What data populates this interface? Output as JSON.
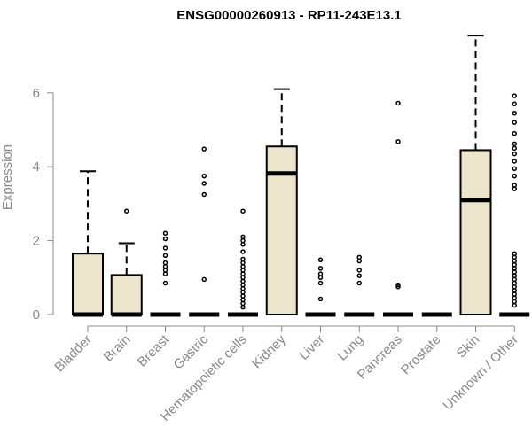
{
  "chart_data": {
    "type": "boxplot",
    "title": "ENSG00000260913 - RP11-243E13.1",
    "ylabel": "Expression",
    "ylim": [
      0,
      7.6
    ],
    "yticks": [
      0,
      2,
      4,
      6
    ],
    "categories": [
      "Bladder",
      "Brain",
      "Breast",
      "Gastric",
      "Hematopoietic cells",
      "Kidney",
      "Liver",
      "Lung",
      "Pancreas",
      "Prostate",
      "Skin",
      "Unknown / Other"
    ],
    "boxes": [
      {
        "q1": 0,
        "median": 0,
        "q3": 1.65,
        "whisker_low": 0,
        "whisker_high": 3.88,
        "outliers": []
      },
      {
        "q1": 0,
        "median": 0,
        "q3": 1.07,
        "whisker_low": 0,
        "whisker_high": 1.93,
        "outliers": [
          2.8
        ]
      },
      {
        "q1": 0,
        "median": 0,
        "q3": 0,
        "whisker_low": 0,
        "whisker_high": 0,
        "outliers": [
          2.2,
          2.05,
          1.8,
          1.6,
          1.4,
          1.3,
          1.2,
          1.1,
          0.85
        ]
      },
      {
        "q1": 0,
        "median": 0,
        "q3": 0,
        "whisker_low": 0,
        "whisker_high": 0,
        "outliers": [
          4.48,
          3.75,
          3.55,
          3.25,
          0.95
        ]
      },
      {
        "q1": 0,
        "median": 0,
        "q3": 0,
        "whisker_low": 0,
        "whisker_high": 0,
        "outliers": [
          2.8,
          2.1,
          2.0,
          1.9,
          1.7,
          1.5,
          1.4,
          1.3,
          1.2,
          1.1,
          1.0,
          0.9,
          0.8,
          0.7,
          0.6,
          0.5,
          0.4,
          0.3,
          0.2
        ]
      },
      {
        "q1": 0,
        "median": 3.82,
        "q3": 4.55,
        "whisker_low": 0,
        "whisker_high": 6.1,
        "outliers": []
      },
      {
        "q1": 0,
        "median": 0,
        "q3": 0,
        "whisker_low": 0,
        "whisker_high": 0,
        "outliers": [
          1.48,
          1.25,
          1.1,
          1.0,
          0.85,
          0.42
        ]
      },
      {
        "q1": 0,
        "median": 0,
        "q3": 0,
        "whisker_low": 0,
        "whisker_high": 0,
        "outliers": [
          1.55,
          1.45,
          1.2,
          1.05,
          0.85
        ]
      },
      {
        "q1": 0,
        "median": 0,
        "q3": 0,
        "whisker_low": 0,
        "whisker_high": 0,
        "outliers": [
          5.72,
          4.68,
          0.8,
          0.75
        ]
      },
      {
        "q1": 0,
        "median": 0,
        "q3": 0,
        "whisker_low": 0,
        "whisker_high": 0,
        "outliers": []
      },
      {
        "q1": 0,
        "median": 3.1,
        "q3": 4.45,
        "whisker_low": 0,
        "whisker_high": 7.55,
        "outliers": []
      },
      {
        "q1": 0,
        "median": 0,
        "q3": 0,
        "whisker_low": 0,
        "whisker_high": 0,
        "outliers": [
          5.92,
          5.7,
          5.45,
          5.2,
          4.9,
          4.62,
          4.5,
          4.35,
          4.15,
          3.95,
          3.75,
          3.5,
          3.4,
          1.65,
          1.55,
          1.45,
          1.35,
          1.25,
          1.15,
          1.05,
          0.95,
          0.85,
          0.75,
          0.65,
          0.55,
          0.45,
          0.35,
          0.25
        ]
      }
    ]
  }
}
